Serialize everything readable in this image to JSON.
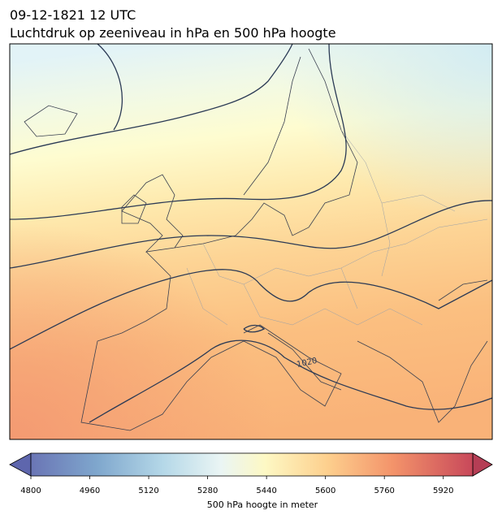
{
  "header": {
    "title_line1": "09-12-1821 12 UTC",
    "title_line2": "Luchtdruk op zeeniveau in hPa en 500 hPa hoogte"
  },
  "map": {
    "contour_labels": [
      "1020"
    ]
  },
  "colorbar": {
    "lim": [
      4800,
      6000
    ],
    "ticks": [
      4800,
      4960,
      5120,
      5280,
      5440,
      5600,
      5760,
      5920
    ],
    "label": "500 hPa hoogte in meter"
  }
}
